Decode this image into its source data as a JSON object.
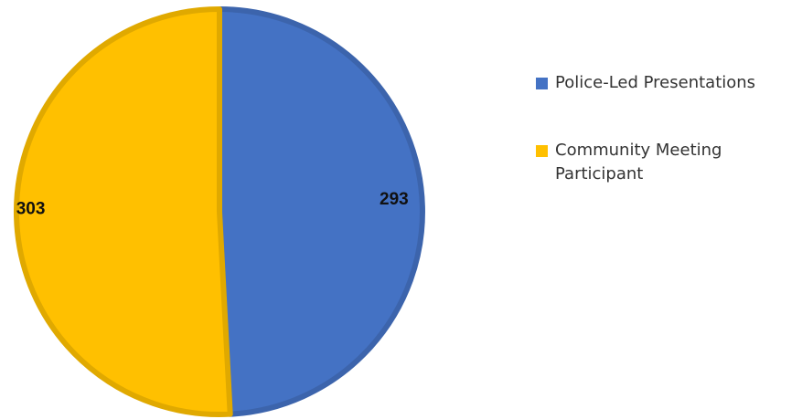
{
  "chart_data": {
    "type": "pie",
    "title": "",
    "slices": [
      {
        "label": "Police-Led Presentations",
        "value": 293,
        "color": "#4472C4"
      },
      {
        "label": "Community Meeting Participant",
        "value": 303,
        "color": "#FFC000"
      }
    ],
    "legend_position": "right",
    "data_labels": [
      "293",
      "303"
    ]
  }
}
